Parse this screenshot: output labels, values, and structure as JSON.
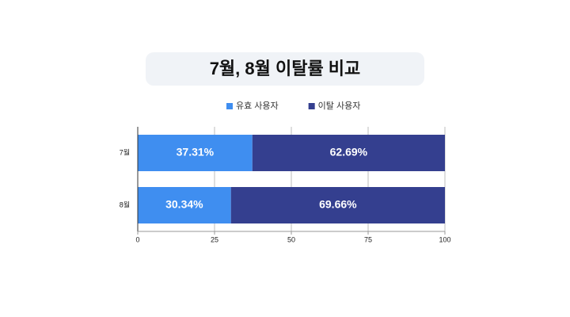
{
  "chart_data": {
    "type": "bar",
    "orientation": "horizontal",
    "stacked": true,
    "title": "7월, 8월 이탈률 비교",
    "categories": [
      "7월",
      "8월"
    ],
    "series": [
      {
        "name": "유효 사용자",
        "color": "#3f8ef0",
        "values": [
          37.31,
          30.34
        ],
        "value_labels": [
          "37.31%",
          "30.34%"
        ]
      },
      {
        "name": "이탈 사용자",
        "color": "#343f8f",
        "values": [
          62.69,
          69.66
        ],
        "value_labels": [
          "62.69%",
          "69.66%"
        ]
      }
    ],
    "xlim": [
      0,
      100
    ],
    "xticks": [
      0,
      25,
      50,
      75,
      100
    ],
    "grid": true,
    "legend": "top"
  }
}
